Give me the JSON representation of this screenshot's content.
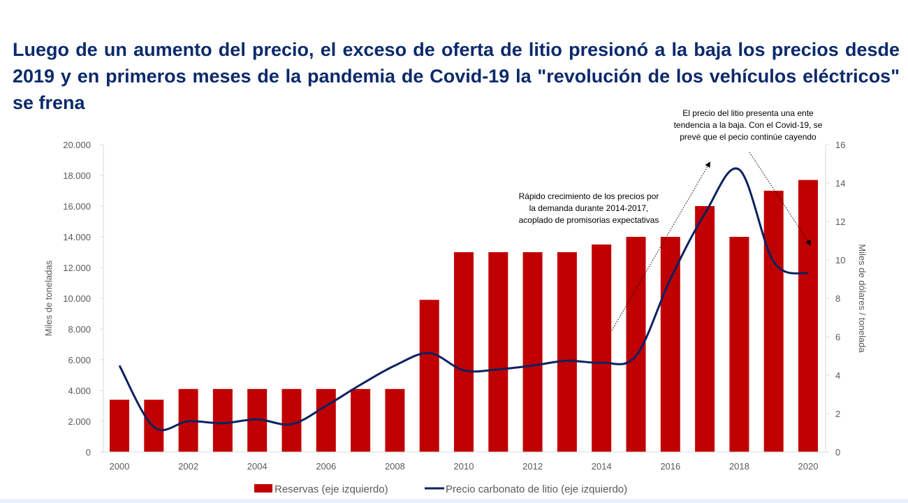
{
  "title": "Luego de un aumento del precio, el exceso de oferta de litio presionó a la baja los precios desde 2019 y en primeros meses de la pandemia de Covid-19 la \"revolución de los vehículos eléctricos\" se frena",
  "colors": {
    "bars": "#c00000",
    "line": "#0b2160",
    "title": "#0b2a6b"
  },
  "chart_data": {
    "type": "bar+line",
    "x": [
      2000,
      2001,
      2002,
      2003,
      2004,
      2005,
      2006,
      2007,
      2008,
      2009,
      2010,
      2011,
      2012,
      2013,
      2014,
      2015,
      2016,
      2017,
      2018,
      2019,
      2020
    ],
    "x_tick_labels": [
      "2000",
      "2002",
      "2004",
      "2006",
      "2008",
      "2010",
      "2012",
      "2014",
      "2016",
      "2018",
      "2020"
    ],
    "series": [
      {
        "name": "Reservas (eje izquierdo)",
        "type": "bar",
        "axis": "left",
        "values": [
          3400,
          3400,
          4100,
          4100,
          4100,
          4100,
          4100,
          4100,
          4100,
          9900,
          13000,
          13000,
          13000,
          13000,
          13500,
          14000,
          14000,
          16000,
          14000,
          17000,
          17700
        ]
      },
      {
        "name": "Precio carbonato de litio (eje izquierdo)",
        "type": "line",
        "axis": "right",
        "values": [
          4.5,
          1.3,
          1.6,
          1.5,
          1.7,
          1.45,
          2.4,
          3.5,
          4.5,
          5.15,
          4.25,
          4.3,
          4.5,
          4.75,
          4.65,
          5.0,
          9.0,
          12.4,
          14.7,
          9.9,
          9.3
        ]
      }
    ],
    "ylabel": "Miles de toneladas",
    "y2label": "Miles de dólares / tonelada",
    "ylim": [
      0,
      20000
    ],
    "y2lim": [
      0,
      16
    ],
    "y_tick_labels": [
      "0",
      "2.000",
      "4.000",
      "6.000",
      "8.000",
      "10.000",
      "12.000",
      "14.000",
      "16.000",
      "18.000",
      "20.000"
    ],
    "y2_tick_labels": [
      "0",
      "2",
      "4",
      "6",
      "8",
      "10",
      "12",
      "14",
      "16"
    ],
    "legend_position": "bottom",
    "annotations": [
      {
        "lines": [
          "Rápido crecimiento de los precios por",
          "la demanda durante 2014-2017,",
          "acoplado de promisorias expectativas"
        ]
      },
      {
        "lines": [
          "El precio del litio presenta una ente",
          "tendencia a la baja. Con el Covid-19, se",
          "prevé que el pecio continúe cayendo"
        ]
      }
    ]
  }
}
